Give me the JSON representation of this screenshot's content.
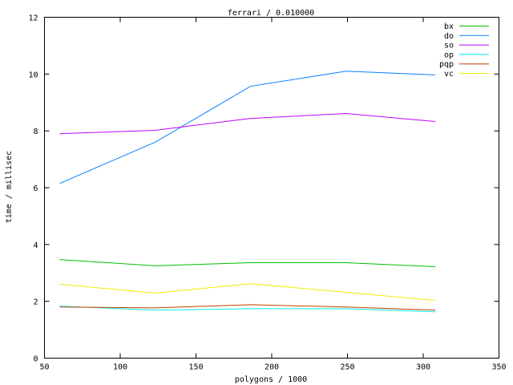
{
  "chart_data": {
    "type": "line",
    "title": "ferrari / 0.010000",
    "xlabel": "polygons / 1000",
    "ylabel": "time / millisec",
    "xlim": [
      50,
      350
    ],
    "ylim": [
      0,
      12
    ],
    "xticks": [
      50,
      100,
      150,
      200,
      250,
      300,
      350
    ],
    "yticks": [
      0,
      2,
      4,
      6,
      8,
      10,
      12
    ],
    "grid": false,
    "legend": "top-right",
    "x": [
      60,
      123,
      186,
      249,
      308
    ],
    "series": [
      {
        "name": "bx",
        "color": "#00c000",
        "values": [
          3.47,
          3.25,
          3.36,
          3.36,
          3.22
        ]
      },
      {
        "name": "do",
        "color": "#0080ff",
        "values": [
          6.15,
          7.6,
          9.57,
          10.1,
          9.97
        ]
      },
      {
        "name": "so",
        "color": "#c000ff",
        "values": [
          7.9,
          8.02,
          8.44,
          8.61,
          8.33
        ]
      },
      {
        "name": "op",
        "color": "#00eeee",
        "values": [
          1.83,
          1.69,
          1.74,
          1.74,
          1.63
        ]
      },
      {
        "name": "pqp",
        "color": "#c04000",
        "values": [
          1.8,
          1.77,
          1.88,
          1.8,
          1.69
        ]
      },
      {
        "name": "vc",
        "color": "#eeee00",
        "values": [
          2.6,
          2.29,
          2.62,
          2.32,
          2.03
        ]
      }
    ]
  }
}
